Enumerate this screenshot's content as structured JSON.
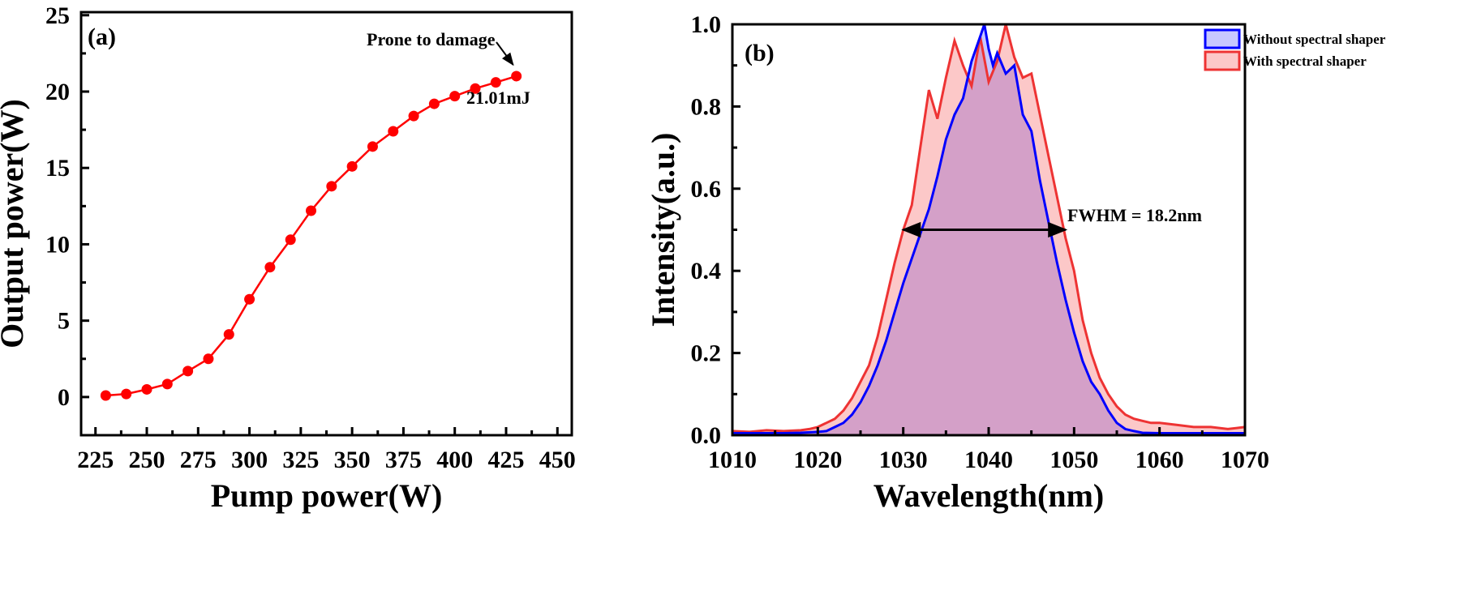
{
  "chart_data": [
    {
      "type": "line",
      "panel_label": "(a)",
      "xlabel": "Pump power(W)",
      "ylabel": "Output power(W)",
      "xlim": [
        218,
        457
      ],
      "ylim": [
        -2.5,
        25.2
      ],
      "xticks": [
        225,
        250,
        275,
        300,
        325,
        350,
        375,
        400,
        425,
        450
      ],
      "yticks": [
        0,
        5,
        10,
        15,
        20,
        25
      ],
      "grid": false,
      "color": "#ff0000",
      "series": [
        {
          "x": [
            230,
            240,
            250,
            260,
            270,
            280,
            290,
            300,
            310,
            320,
            330,
            340,
            350,
            360,
            370,
            380,
            390,
            400,
            410,
            420,
            430
          ],
          "y": [
            0.1,
            0.2,
            0.5,
            0.85,
            1.7,
            2.5,
            4.1,
            6.4,
            8.5,
            10.3,
            12.2,
            13.8,
            15.1,
            16.4,
            17.4,
            18.4,
            19.2,
            19.7,
            20.2,
            20.6,
            21.01
          ]
        }
      ],
      "annotations": {
        "damage": "Prone to damage",
        "last_value": "21.01mJ"
      }
    },
    {
      "type": "area",
      "panel_label": "(b)",
      "xlabel": "Wavelength(nm)",
      "ylabel": "Intensity(a.u.)",
      "xlim": [
        1010,
        1070
      ],
      "ylim": [
        0,
        1.0
      ],
      "xticks": [
        1010,
        1020,
        1030,
        1040,
        1050,
        1060,
        1070
      ],
      "yticks": [
        "0.0",
        "0.2",
        "0.4",
        "0.6",
        "0.8",
        "1.0"
      ],
      "grid": false,
      "legend_position": "top-right",
      "series": [
        {
          "name": "Without spectral shaper",
          "line_color": "#0000ff",
          "fill_color": "#c8c8ff",
          "x": [
            1010,
            1012,
            1014,
            1016,
            1018,
            1020,
            1021,
            1022,
            1023,
            1024,
            1025,
            1026,
            1027,
            1028,
            1029,
            1030,
            1031,
            1032,
            1033,
            1034,
            1035,
            1036,
            1037,
            1038,
            1039,
            1039.5,
            1040,
            1040.5,
            1041,
            1042,
            1043,
            1044,
            1045,
            1046,
            1047,
            1048,
            1049,
            1050,
            1051,
            1052,
            1053,
            1054,
            1055,
            1056,
            1057,
            1058,
            1060,
            1062,
            1064,
            1066,
            1068,
            1070
          ],
          "y": [
            0.005,
            0.005,
            0.005,
            0.005,
            0.006,
            0.008,
            0.01,
            0.02,
            0.03,
            0.05,
            0.08,
            0.12,
            0.17,
            0.23,
            0.3,
            0.37,
            0.43,
            0.49,
            0.55,
            0.63,
            0.72,
            0.78,
            0.82,
            0.91,
            0.97,
            1.0,
            0.94,
            0.9,
            0.93,
            0.88,
            0.9,
            0.78,
            0.74,
            0.62,
            0.52,
            0.42,
            0.33,
            0.25,
            0.18,
            0.13,
            0.1,
            0.06,
            0.03,
            0.015,
            0.01,
            0.006,
            0.005,
            0.005,
            0.005,
            0.005,
            0.005,
            0.005
          ]
        },
        {
          "name": "With spectral shaper",
          "line_color": "#ee3333",
          "fill_color": "#fcc8c8",
          "x": [
            1010,
            1012,
            1014,
            1016,
            1018,
            1019,
            1020,
            1021,
            1022,
            1023,
            1024,
            1025,
            1026,
            1027,
            1028,
            1029,
            1030,
            1031,
            1032,
            1033,
            1034,
            1035,
            1036,
            1037,
            1038,
            1039,
            1040,
            1041,
            1042,
            1043,
            1044,
            1045,
            1046,
            1047,
            1048,
            1049,
            1050,
            1051,
            1052,
            1053,
            1054,
            1055,
            1056,
            1057,
            1058,
            1059,
            1060,
            1062,
            1064,
            1066,
            1068,
            1070
          ],
          "y": [
            0.01,
            0.008,
            0.012,
            0.01,
            0.012,
            0.015,
            0.02,
            0.03,
            0.04,
            0.06,
            0.09,
            0.13,
            0.17,
            0.24,
            0.33,
            0.42,
            0.5,
            0.56,
            0.7,
            0.84,
            0.77,
            0.87,
            0.96,
            0.9,
            0.85,
            0.97,
            0.86,
            0.91,
            1.0,
            0.92,
            0.87,
            0.88,
            0.78,
            0.68,
            0.58,
            0.48,
            0.4,
            0.28,
            0.2,
            0.14,
            0.1,
            0.07,
            0.05,
            0.04,
            0.035,
            0.03,
            0.03,
            0.025,
            0.02,
            0.02,
            0.015,
            0.02
          ]
        }
      ],
      "overlap_fill_color": "#d4a0c8",
      "annotations": {
        "fwhm": "FWHM = 18.2nm",
        "fwhm_range": [
          1030,
          1049
        ],
        "fwhm_level": 0.5
      }
    }
  ]
}
